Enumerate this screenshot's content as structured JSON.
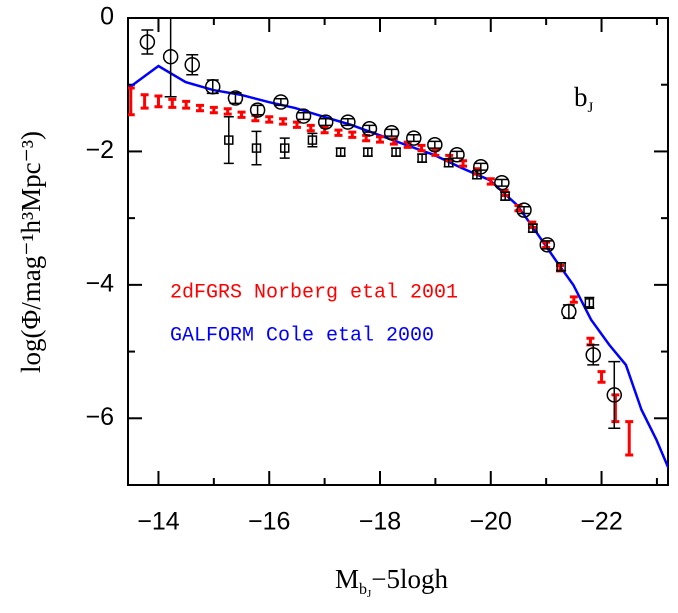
{
  "chart_data": {
    "type": "errorbar",
    "xlabel": {
      "main": "M",
      "sub": "b",
      "subsub": "J",
      "rest": "−5logh"
    },
    "ylabel": "log(Φ/mag⁻¹h³Mpc⁻³)",
    "annotation": {
      "main": "b",
      "sub": "J"
    },
    "xlim": [
      -13.45,
      -23.2
    ],
    "ylim": [
      -7,
      0
    ],
    "xticks": [
      {
        "value": -14,
        "label": "−14"
      },
      {
        "value": -16,
        "label": "−16"
      },
      {
        "value": -18,
        "label": "−18"
      },
      {
        "value": -20,
        "label": "−20"
      },
      {
        "value": -22,
        "label": "−22"
      }
    ],
    "xminorticks": [
      -15,
      -17,
      -19,
      -21,
      -23
    ],
    "yticks": [
      {
        "value": 0,
        "label": "0"
      },
      {
        "value": -2,
        "label": "−2"
      },
      {
        "value": -4,
        "label": "−4"
      },
      {
        "value": -6,
        "label": "−6"
      }
    ],
    "yminorticks": [
      -1,
      -3,
      -5
    ],
    "series": [
      {
        "name": "GALFORM Cole etal 2000",
        "color": "#0000ff",
        "marker": "line",
        "x": [
          -13.46,
          -14.0,
          -14.49,
          -14.99,
          -15.48,
          -15.99,
          -16.47,
          -16.98,
          -17.47,
          -17.97,
          -18.46,
          -18.97,
          -19.48,
          -19.98,
          -20.47,
          -20.73,
          -20.98,
          -21.23,
          -21.49,
          -21.81,
          -22.14,
          -22.44,
          -22.72,
          -22.99,
          -23.22
        ],
        "values": [
          -1.05,
          -0.72,
          -0.96,
          -1.08,
          -1.15,
          -1.26,
          -1.35,
          -1.48,
          -1.6,
          -1.75,
          -1.9,
          -2.05,
          -2.25,
          -2.43,
          -2.8,
          -3.1,
          -3.4,
          -3.7,
          -4.0,
          -4.52,
          -4.9,
          -5.2,
          -5.87,
          -6.32,
          -6.77
        ]
      },
      {
        "name": "2dFGRS Norberg etal 2001",
        "color": "#ff0000",
        "marker": "bar",
        "x": [
          -13.5,
          -13.75,
          -14.0,
          -14.25,
          -14.5,
          -14.75,
          -15.0,
          -15.25,
          -15.5,
          -15.75,
          -16.0,
          -16.25,
          -16.5,
          -16.75,
          -17.0,
          -17.25,
          -17.5,
          -17.75,
          -18.0,
          -18.25,
          -18.5,
          -18.75,
          -19.0,
          -19.25,
          -19.5,
          -19.75,
          -20.0,
          -20.25,
          -20.5,
          -20.75,
          -21.0,
          -21.25,
          -21.5,
          -21.8,
          -22.0,
          -22.25,
          -22.5
        ],
        "values": [
          -1.25,
          -1.25,
          -1.25,
          -1.28,
          -1.3,
          -1.35,
          -1.38,
          -1.4,
          -1.45,
          -1.5,
          -1.52,
          -1.55,
          -1.6,
          -1.65,
          -1.68,
          -1.72,
          -1.75,
          -1.8,
          -1.82,
          -1.85,
          -1.9,
          -1.95,
          -2.02,
          -2.1,
          -2.18,
          -2.3,
          -2.45,
          -2.62,
          -2.85,
          -3.1,
          -3.4,
          -3.75,
          -4.22,
          -4.85,
          -5.38,
          -5.85,
          -6.3
        ],
        "errors": [
          0.2,
          0.1,
          0.08,
          0.06,
          0.05,
          0.04,
          0.04,
          0.04,
          0.04,
          0.04,
          0.04,
          0.04,
          0.04,
          0.04,
          0.04,
          0.04,
          0.04,
          0.04,
          0.04,
          0.04,
          0.04,
          0.04,
          0.04,
          0.04,
          0.04,
          0.04,
          0.04,
          0.04,
          0.04,
          0.04,
          0.04,
          0.04,
          0.04,
          0.05,
          0.08,
          0.2,
          0.25
        ]
      },
      {
        "color": "#000000",
        "marker": "circle",
        "x": [
          -13.8,
          -14.22,
          -14.61,
          -14.98,
          -15.39,
          -15.79,
          -16.21,
          -16.62,
          -17.02,
          -17.42,
          -17.81,
          -18.21,
          -18.61,
          -18.99,
          -19.39,
          -19.82,
          -20.2,
          -20.6,
          -21.02,
          -21.41,
          -21.85,
          -22.23
        ],
        "values": [
          -0.36,
          -0.58,
          -0.7,
          -1.03,
          -1.2,
          -1.38,
          -1.26,
          -1.47,
          -1.56,
          -1.56,
          -1.66,
          -1.72,
          -1.8,
          -1.9,
          -2.05,
          -2.23,
          -2.47,
          -2.88,
          -3.4,
          -4.4,
          -5.05,
          -5.65
        ],
        "errors": [
          0.18,
          0.6,
          0.15,
          0.1,
          0.08,
          0.07,
          0.05,
          0.05,
          0.05,
          0.05,
          0.05,
          0.05,
          0.05,
          0.05,
          0.05,
          0.05,
          0.05,
          0.05,
          0.06,
          0.1,
          0.15,
          0.5
        ]
      },
      {
        "color": "#000000",
        "marker": "square",
        "x": [
          -15.27,
          -15.77,
          -16.28,
          -16.78,
          -17.29,
          -17.78,
          -18.29,
          -18.76,
          -19.24,
          -19.75,
          -20.26,
          -20.76,
          -21.27,
          -21.78
        ],
        "values": [
          -1.83,
          -1.95,
          -1.95,
          -1.83,
          -2.01,
          -2.01,
          -2.01,
          -2.1,
          -2.17,
          -2.35,
          -2.67,
          -3.15,
          -3.73,
          -4.27
        ],
        "errors": [
          0.35,
          0.25,
          0.15,
          0.1,
          0.06,
          0.06,
          0.06,
          0.06,
          0.06,
          0.06,
          0.06,
          0.06,
          0.06,
          0.08
        ]
      }
    ]
  }
}
